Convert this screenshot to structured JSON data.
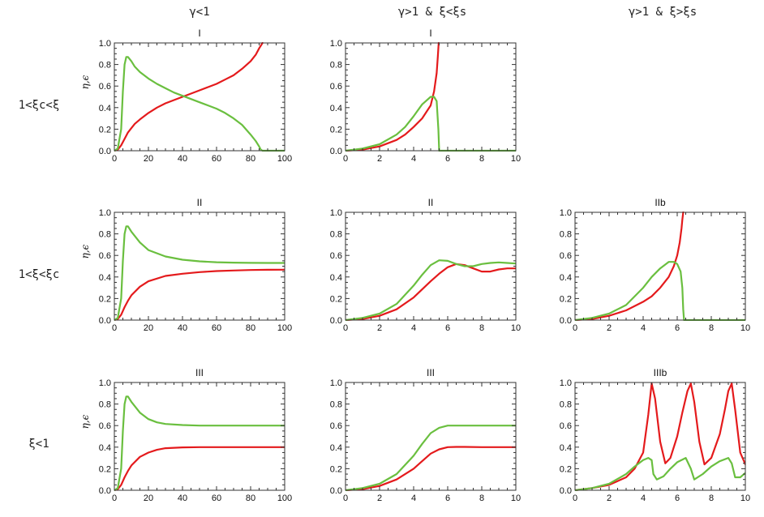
{
  "column_titles": [
    "γ<1",
    "γ>1  &  ξ<ξs",
    "γ>1  &  ξ>ξs"
  ],
  "row_labels": [
    "1<ξc<ξ",
    "1<ξ<ξc",
    "ξ<1"
  ],
  "colors": {
    "red": "#e41a1c",
    "green": "#6abf3f"
  },
  "chart_data": [
    {
      "type": "line",
      "row": 0,
      "col": 0,
      "title": "I",
      "xlabel": "",
      "ylabel": "η,ϵ",
      "xlim": [
        0,
        100
      ],
      "ylim": [
        0,
        1
      ],
      "xticks": [
        0,
        20,
        40,
        60,
        80,
        100
      ],
      "yticks": [
        0.0,
        0.2,
        0.4,
        0.6,
        0.8,
        1.0
      ],
      "series": [
        {
          "name": "red",
          "color": "#e41a1c",
          "x": [
            0,
            2,
            4,
            6,
            8,
            10,
            12,
            15,
            20,
            25,
            30,
            35,
            40,
            45,
            50,
            55,
            60,
            65,
            70,
            75,
            80,
            83,
            85,
            87
          ],
          "y": [
            0,
            0.01,
            0.05,
            0.11,
            0.17,
            0.21,
            0.25,
            0.29,
            0.35,
            0.4,
            0.44,
            0.47,
            0.5,
            0.53,
            0.56,
            0.59,
            0.62,
            0.66,
            0.7,
            0.76,
            0.83,
            0.89,
            0.95,
            1.0
          ]
        },
        {
          "name": "green",
          "color": "#6abf3f",
          "x": [
            0,
            2,
            4,
            5,
            6,
            7,
            8,
            10,
            12,
            15,
            20,
            25,
            30,
            35,
            40,
            45,
            50,
            55,
            60,
            65,
            70,
            75,
            80,
            83,
            85,
            86,
            87,
            90,
            100
          ],
          "y": [
            0,
            0.02,
            0.2,
            0.55,
            0.8,
            0.87,
            0.87,
            0.83,
            0.78,
            0.73,
            0.67,
            0.62,
            0.58,
            0.54,
            0.51,
            0.48,
            0.45,
            0.42,
            0.39,
            0.35,
            0.3,
            0.24,
            0.15,
            0.09,
            0.04,
            0.01,
            0,
            0,
            0
          ]
        }
      ]
    },
    {
      "type": "line",
      "row": 0,
      "col": 1,
      "title": "I",
      "xlabel": "",
      "ylabel": "",
      "xlim": [
        0,
        10
      ],
      "ylim": [
        0,
        1
      ],
      "xticks": [
        0,
        2,
        4,
        6,
        8,
        10
      ],
      "yticks": [
        0.0,
        0.2,
        0.4,
        0.6,
        0.8,
        1.0
      ],
      "series": [
        {
          "name": "red",
          "color": "#e41a1c",
          "x": [
            0,
            1,
            2,
            3,
            3.5,
            4,
            4.5,
            5,
            5.2,
            5.35,
            5.42,
            5.47
          ],
          "y": [
            0,
            0.01,
            0.04,
            0.1,
            0.15,
            0.22,
            0.3,
            0.42,
            0.55,
            0.72,
            0.87,
            1.0
          ]
        },
        {
          "name": "green",
          "color": "#6abf3f",
          "x": [
            0,
            1,
            2,
            3,
            3.5,
            4,
            4.5,
            5,
            5.2,
            5.35,
            5.45,
            5.5,
            6,
            8,
            10
          ],
          "y": [
            0,
            0.02,
            0.06,
            0.15,
            0.22,
            0.32,
            0.43,
            0.5,
            0.5,
            0.46,
            0.2,
            0,
            0,
            0,
            0
          ]
        }
      ]
    },
    null,
    {
      "type": "line",
      "row": 1,
      "col": 0,
      "title": "II",
      "xlabel": "",
      "ylabel": "η,ϵ",
      "xlim": [
        0,
        100
      ],
      "ylim": [
        0,
        1
      ],
      "xticks": [
        0,
        20,
        40,
        60,
        80,
        100
      ],
      "yticks": [
        0.0,
        0.2,
        0.4,
        0.6,
        0.8,
        1.0
      ],
      "series": [
        {
          "name": "red",
          "color": "#e41a1c",
          "x": [
            0,
            2,
            4,
            6,
            8,
            10,
            15,
            20,
            30,
            40,
            50,
            60,
            70,
            80,
            90,
            100
          ],
          "y": [
            0,
            0.01,
            0.05,
            0.12,
            0.18,
            0.23,
            0.31,
            0.36,
            0.41,
            0.43,
            0.445,
            0.455,
            0.46,
            0.465,
            0.467,
            0.468
          ]
        },
        {
          "name": "green",
          "color": "#6abf3f",
          "x": [
            0,
            2,
            4,
            5,
            6,
            7,
            8,
            10,
            15,
            20,
            30,
            40,
            50,
            60,
            70,
            80,
            90,
            100
          ],
          "y": [
            0,
            0.02,
            0.2,
            0.55,
            0.8,
            0.87,
            0.87,
            0.82,
            0.72,
            0.65,
            0.59,
            0.56,
            0.545,
            0.537,
            0.533,
            0.531,
            0.53,
            0.53
          ]
        }
      ]
    },
    {
      "type": "line",
      "row": 1,
      "col": 1,
      "title": "II",
      "xlabel": "",
      "ylabel": "",
      "xlim": [
        0,
        10
      ],
      "ylim": [
        0,
        1
      ],
      "xticks": [
        0,
        2,
        4,
        6,
        8,
        10
      ],
      "yticks": [
        0.0,
        0.2,
        0.4,
        0.6,
        0.8,
        1.0
      ],
      "series": [
        {
          "name": "red",
          "color": "#e41a1c",
          "x": [
            0,
            1,
            2,
            3,
            4,
            5,
            5.5,
            6,
            6.5,
            7,
            7.5,
            8,
            8.5,
            9,
            9.5,
            10
          ],
          "y": [
            0,
            0.01,
            0.04,
            0.1,
            0.21,
            0.36,
            0.43,
            0.49,
            0.52,
            0.51,
            0.48,
            0.45,
            0.45,
            0.47,
            0.48,
            0.48
          ]
        },
        {
          "name": "green",
          "color": "#6abf3f",
          "x": [
            0,
            1,
            2,
            3,
            4,
            4.5,
            5,
            5.5,
            6,
            6.5,
            7,
            7.5,
            8,
            8.5,
            9,
            9.5,
            10
          ],
          "y": [
            0,
            0.02,
            0.06,
            0.15,
            0.32,
            0.42,
            0.51,
            0.555,
            0.55,
            0.52,
            0.5,
            0.5,
            0.52,
            0.53,
            0.535,
            0.53,
            0.525
          ]
        }
      ]
    },
    {
      "type": "line",
      "row": 1,
      "col": 2,
      "title": "IIb",
      "xlabel": "",
      "ylabel": "",
      "xlim": [
        0,
        10
      ],
      "ylim": [
        0,
        1
      ],
      "xticks": [
        0,
        2,
        4,
        6,
        8,
        10
      ],
      "yticks": [
        0.0,
        0.2,
        0.4,
        0.6,
        0.8,
        1.0
      ],
      "series": [
        {
          "name": "red",
          "color": "#e41a1c",
          "x": [
            0,
            1,
            2,
            3,
            4,
            4.5,
            5,
            5.5,
            5.8,
            6.0,
            6.15,
            6.25,
            6.3,
            6.35
          ],
          "y": [
            0,
            0.01,
            0.04,
            0.09,
            0.17,
            0.22,
            0.3,
            0.4,
            0.5,
            0.6,
            0.72,
            0.85,
            0.93,
            1.0
          ]
        },
        {
          "name": "green",
          "color": "#6abf3f",
          "x": [
            0,
            1,
            2,
            3,
            4,
            4.5,
            5,
            5.5,
            5.8,
            6.0,
            6.2,
            6.3,
            6.35,
            6.4,
            7,
            8,
            10
          ],
          "y": [
            0,
            0.02,
            0.06,
            0.14,
            0.3,
            0.4,
            0.48,
            0.54,
            0.54,
            0.52,
            0.45,
            0.3,
            0.1,
            0,
            0,
            0,
            0
          ]
        }
      ]
    },
    {
      "type": "line",
      "row": 2,
      "col": 0,
      "title": "III",
      "xlabel": "",
      "ylabel": "η,ϵ",
      "xlim": [
        0,
        100
      ],
      "ylim": [
        0,
        1
      ],
      "xticks": [
        0,
        20,
        40,
        60,
        80,
        100
      ],
      "yticks": [
        0.0,
        0.2,
        0.4,
        0.6,
        0.8,
        1.0
      ],
      "series": [
        {
          "name": "red",
          "color": "#e41a1c",
          "x": [
            0,
            2,
            4,
            6,
            8,
            10,
            15,
            20,
            25,
            30,
            40,
            50,
            60,
            80,
            100
          ],
          "y": [
            0,
            0.01,
            0.05,
            0.12,
            0.18,
            0.23,
            0.31,
            0.35,
            0.375,
            0.39,
            0.398,
            0.4,
            0.4,
            0.4,
            0.4
          ]
        },
        {
          "name": "green",
          "color": "#6abf3f",
          "x": [
            0,
            2,
            4,
            5,
            6,
            7,
            8,
            10,
            15,
            20,
            25,
            30,
            40,
            50,
            60,
            80,
            100
          ],
          "y": [
            0,
            0.02,
            0.2,
            0.55,
            0.8,
            0.87,
            0.87,
            0.82,
            0.72,
            0.66,
            0.63,
            0.615,
            0.605,
            0.6,
            0.6,
            0.6,
            0.6
          ]
        }
      ]
    },
    {
      "type": "line",
      "row": 2,
      "col": 1,
      "title": "III",
      "xlabel": "",
      "ylabel": "",
      "xlim": [
        0,
        10
      ],
      "ylim": [
        0,
        1
      ],
      "xticks": [
        0,
        2,
        4,
        6,
        8,
        10
      ],
      "yticks": [
        0.0,
        0.2,
        0.4,
        0.6,
        0.8,
        1.0
      ],
      "series": [
        {
          "name": "red",
          "color": "#e41a1c",
          "x": [
            0,
            1,
            2,
            3,
            4,
            4.5,
            5,
            5.5,
            6,
            6.5,
            7,
            8,
            10
          ],
          "y": [
            0,
            0.01,
            0.04,
            0.1,
            0.2,
            0.27,
            0.34,
            0.38,
            0.4,
            0.402,
            0.402,
            0.4,
            0.4
          ]
        },
        {
          "name": "green",
          "color": "#6abf3f",
          "x": [
            0,
            1,
            2,
            3,
            4,
            4.5,
            5,
            5.5,
            6,
            6.5,
            7,
            8,
            10
          ],
          "y": [
            0,
            0.02,
            0.06,
            0.15,
            0.32,
            0.43,
            0.53,
            0.58,
            0.6,
            0.6,
            0.6,
            0.6,
            0.6
          ]
        }
      ]
    },
    {
      "type": "line",
      "row": 2,
      "col": 2,
      "title": "IIIb",
      "xlabel": "",
      "ylabel": "",
      "xlim": [
        0,
        10
      ],
      "ylim": [
        0,
        1
      ],
      "xticks": [
        0,
        2,
        4,
        6,
        8,
        10
      ],
      "yticks": [
        0.0,
        0.2,
        0.4,
        0.6,
        0.8,
        1.0
      ],
      "series": [
        {
          "name": "red",
          "color": "#e41a1c",
          "x": [
            0,
            1,
            2,
            3,
            3.5,
            4,
            4.3,
            4.5,
            4.7,
            5,
            5.3,
            5.6,
            6,
            6.3,
            6.6,
            6.8,
            7.0,
            7.3,
            7.6,
            8.0,
            8.5,
            8.8,
            9.0,
            9.2,
            9.4,
            9.7,
            10
          ],
          "y": [
            0,
            0.02,
            0.05,
            0.12,
            0.2,
            0.35,
            0.7,
            0.99,
            0.85,
            0.45,
            0.25,
            0.3,
            0.5,
            0.72,
            0.92,
            0.99,
            0.82,
            0.45,
            0.24,
            0.3,
            0.52,
            0.75,
            0.92,
            0.99,
            0.75,
            0.35,
            0.24
          ]
        },
        {
          "name": "green",
          "color": "#6abf3f",
          "x": [
            0,
            1,
            2,
            3,
            3.5,
            4,
            4.3,
            4.5,
            4.6,
            4.8,
            5.2,
            5.6,
            6.0,
            6.5,
            6.8,
            7.0,
            7.5,
            8.0,
            8.5,
            9.0,
            9.2,
            9.4,
            9.7,
            10
          ],
          "y": [
            0,
            0.02,
            0.06,
            0.15,
            0.22,
            0.28,
            0.3,
            0.28,
            0.15,
            0.1,
            0.13,
            0.2,
            0.26,
            0.3,
            0.2,
            0.1,
            0.15,
            0.22,
            0.27,
            0.3,
            0.25,
            0.12,
            0.12,
            0.16
          ]
        }
      ]
    }
  ]
}
